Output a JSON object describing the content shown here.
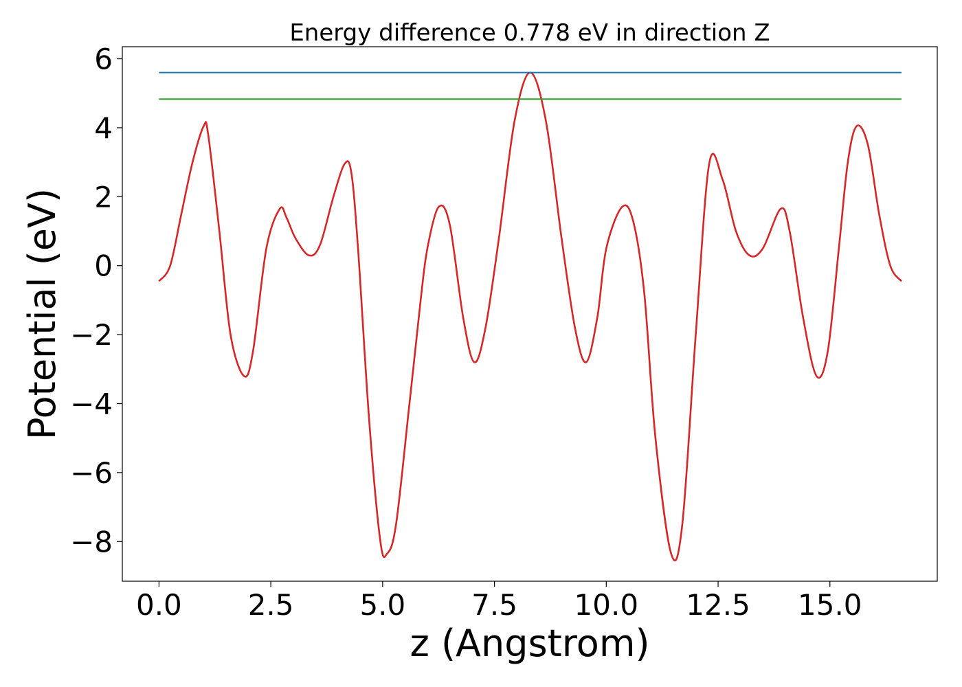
{
  "chart_data": {
    "type": "line",
    "title": "Energy difference 0.778 eV in direction Z",
    "xlabel": "z (Angstrom)",
    "ylabel": "Potential (eV)",
    "xlim": [
      -0.82,
      17.4
    ],
    "ylim": [
      -9.15,
      6.35
    ],
    "xticks": [
      0.0,
      2.5,
      5.0,
      7.5,
      10.0,
      12.5,
      15.0
    ],
    "xtick_labels": [
      "0.0",
      "2.5",
      "5.0",
      "7.5",
      "10.0",
      "12.5",
      "15.0"
    ],
    "yticks": [
      6,
      4,
      2,
      0,
      -2,
      -4,
      -6,
      -8
    ],
    "ytick_labels": [
      "6",
      "4",
      "2",
      "0",
      "−2",
      "−4",
      "−6",
      "−8"
    ],
    "grid": false,
    "series": [
      {
        "color": "#d62728",
        "x": [
          0.0,
          0.25,
          0.5,
          0.75,
          1.0,
          1.1,
          1.35,
          1.6,
          1.9,
          2.1,
          2.4,
          2.7,
          2.85,
          3.05,
          3.35,
          3.6,
          3.9,
          4.15,
          4.3,
          4.45,
          4.7,
          4.95,
          5.1,
          5.3,
          5.6,
          5.85,
          6.0,
          6.25,
          6.5,
          6.8,
          7.05,
          7.3,
          7.6,
          7.95,
          8.3,
          8.65,
          9.0,
          9.3,
          9.55,
          9.8,
          10.0,
          10.35,
          10.6,
          10.85,
          11.1,
          11.45,
          11.7,
          12.0,
          12.3,
          12.6,
          12.9,
          13.2,
          13.5,
          13.9,
          14.1,
          14.4,
          14.7,
          14.95,
          15.2,
          15.4,
          15.6,
          15.85,
          16.1,
          16.35,
          16.6
        ],
        "y": [
          -0.45,
          0.0,
          1.5,
          3.0,
          4.05,
          3.8,
          1.0,
          -2.0,
          -3.2,
          -2.5,
          0.5,
          1.65,
          1.4,
          0.8,
          0.3,
          0.6,
          2.0,
          2.95,
          2.7,
          0.5,
          -4.5,
          -8.0,
          -8.35,
          -7.5,
          -4.0,
          -1.0,
          0.5,
          1.7,
          1.2,
          -1.5,
          -2.8,
          -1.8,
          0.8,
          4.2,
          5.6,
          4.2,
          0.8,
          -1.8,
          -2.8,
          -1.5,
          0.5,
          1.7,
          1.3,
          -0.8,
          -5.0,
          -8.35,
          -7.5,
          -2.0,
          2.95,
          2.5,
          1.0,
          0.3,
          0.5,
          1.65,
          1.0,
          -1.5,
          -3.2,
          -2.5,
          0.5,
          3.0,
          4.05,
          3.5,
          1.5,
          0.0,
          -0.45
        ]
      },
      {
        "color": "#1f77b4",
        "x": [
          0.0,
          16.6
        ],
        "y": [
          5.6,
          5.6
        ]
      },
      {
        "color": "#2ca02c",
        "x": [
          0.0,
          16.6
        ],
        "y": [
          4.83,
          4.83
        ]
      }
    ]
  }
}
